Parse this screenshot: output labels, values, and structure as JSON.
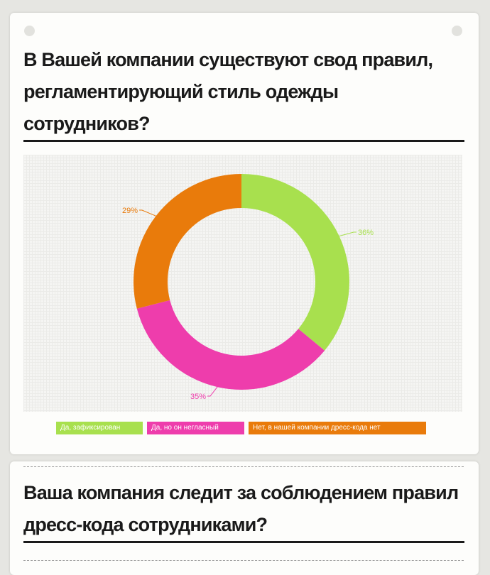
{
  "q1": {
    "title_lines": [
      "В Вашей компании существуют свод правил,",
      "регламентирующий стиль одежды",
      "сотрудников?"
    ]
  },
  "q2": {
    "title_lines": [
      "Ваша компания следит за соблюдением правил",
      "дресс-кода сотрудниками?"
    ]
  },
  "colors": {
    "green": "#a8e04e",
    "pink": "#ee3dac",
    "orange": "#e97b0b",
    "heading": "#1a1a1a"
  },
  "chart_data": {
    "type": "pie",
    "variant": "donut",
    "categories": [
      "Да, зафиксирован",
      "Да, но он негласный",
      "Нет, в нашей компании дресс-кода нет"
    ],
    "values": [
      36,
      35,
      29
    ],
    "labels": [
      "36%",
      "35%",
      "29%"
    ],
    "legend_position": "bottom"
  }
}
